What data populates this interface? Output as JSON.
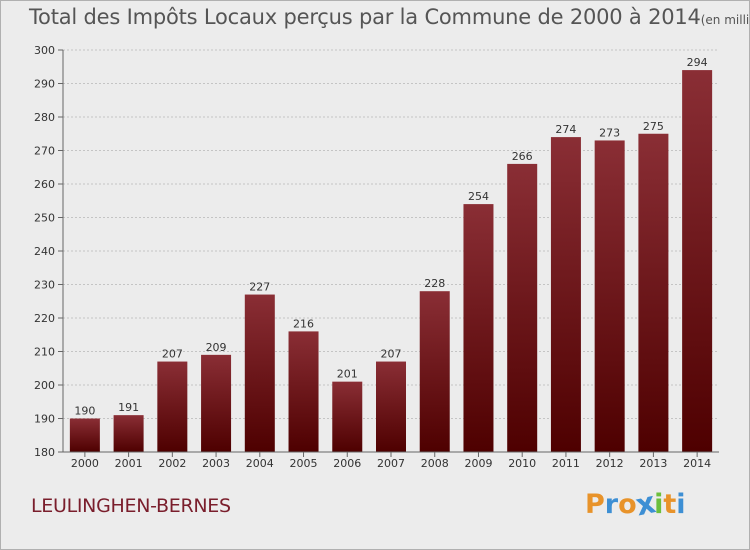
{
  "header": {
    "title": "Total des Impôts Locaux perçus par la Commune de 2000 à 2014",
    "unit_note": "(en milliers d'€)"
  },
  "footer": {
    "commune_name": "LEULINGHEN-BERNES",
    "brand": {
      "letters": [
        "P",
        "r",
        "o",
        "x",
        "i",
        "t",
        "i"
      ],
      "colors": [
        "#e8932a",
        "#3d8fd4",
        "#e8932a",
        "#3d8fd4",
        "#6cbf3c",
        "#e8932a",
        "#3d8fd4"
      ]
    }
  },
  "chart_data": {
    "type": "bar",
    "title": "Total des Impôts Locaux perçus par la Commune de 2000 à 2014",
    "xlabel": "",
    "ylabel": "",
    "categories": [
      "2000",
      "2001",
      "2002",
      "2003",
      "2004",
      "2005",
      "2006",
      "2007",
      "2008",
      "2009",
      "2010",
      "2011",
      "2012",
      "2013",
      "2014"
    ],
    "values": [
      190,
      191,
      207,
      209,
      227,
      216,
      201,
      207,
      228,
      254,
      266,
      274,
      273,
      275,
      294
    ],
    "data_labels": [
      "190",
      "191",
      "207",
      "209",
      "227",
      "216",
      "201",
      "207",
      "228",
      "254",
      "266",
      "274",
      "273",
      "275",
      "294"
    ],
    "ylim": [
      180,
      300
    ],
    "yticks": [
      180,
      190,
      200,
      210,
      220,
      230,
      240,
      250,
      260,
      270,
      280,
      290,
      300
    ],
    "ytick_labels": [
      "180",
      "190",
      "200",
      "210",
      "220",
      "230",
      "240",
      "250",
      "260",
      "270",
      "280",
      "290",
      "300"
    ],
    "grid": true,
    "colors": {
      "bar_top": "#8a2e35",
      "bar_bottom": "#4e0000",
      "grid": "#c4c4c4",
      "axis": "#666666",
      "text": "#333333"
    }
  }
}
